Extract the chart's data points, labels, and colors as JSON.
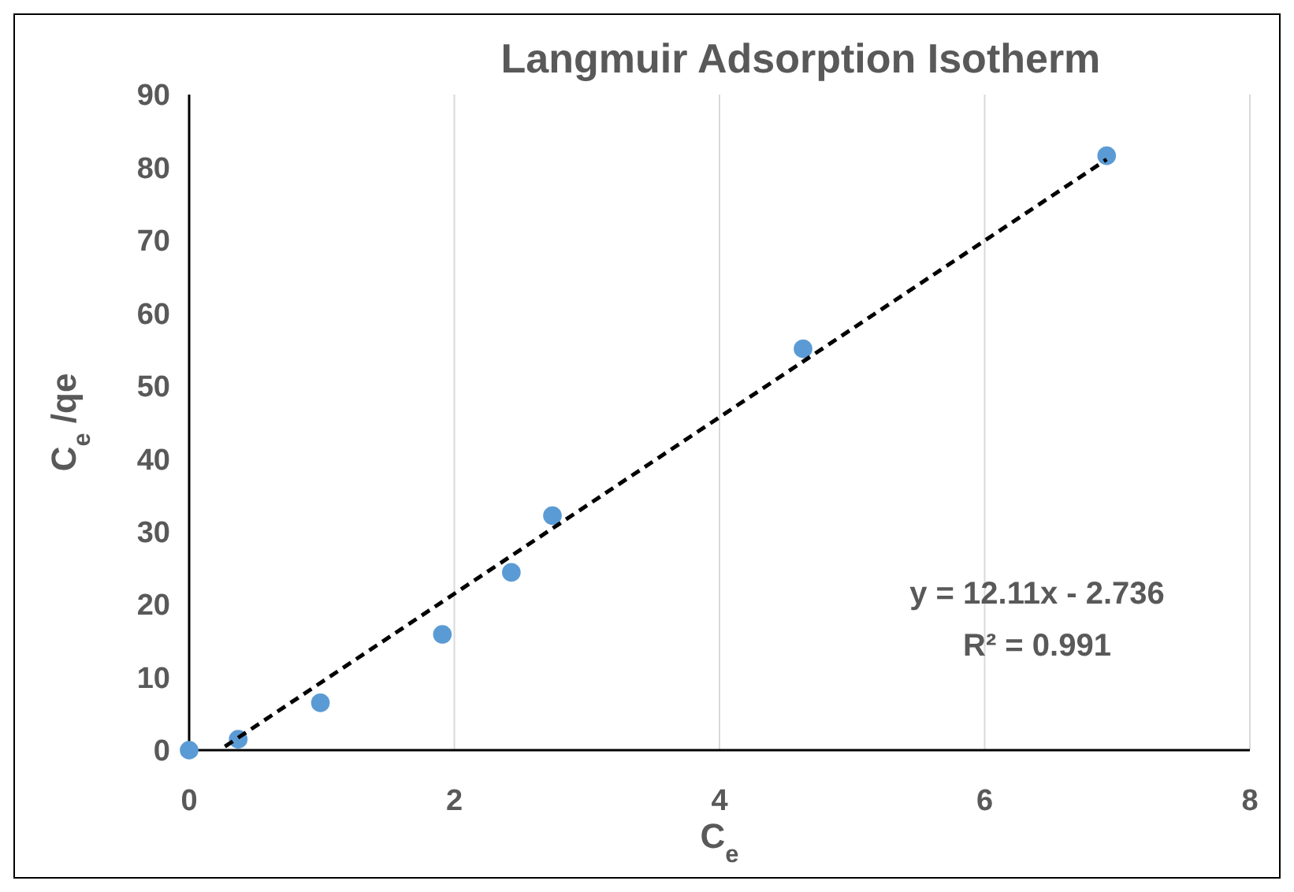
{
  "chart_data": {
    "type": "scatter",
    "title": "Langmuir Adsorption Isotherm",
    "xlabel": "C$_{e}$",
    "ylabel": "C$_{e}$ /qe",
    "xlim": [
      0,
      8
    ],
    "xticks": [
      0,
      2,
      4,
      6,
      8
    ],
    "ylim": [
      0,
      90
    ],
    "yticks": [
      0,
      10,
      20,
      30,
      40,
      50,
      60,
      70,
      80,
      90
    ],
    "grid": "x",
    "legend": false,
    "series": [
      {
        "type": "scatter",
        "color": "#5b9bd5",
        "marker": "circle",
        "x": [
          0,
          0.37,
          0.99,
          1.91,
          2.43,
          2.74,
          4.63,
          6.92
        ],
        "values": [
          0,
          1.5,
          6.5,
          15.9,
          24.4,
          32.2,
          55.1,
          81.6
        ]
      },
      {
        "type": "line",
        "color": "#000000",
        "marker": "none",
        "line_style": "dashed",
        "x": [
          0.27,
          6.92
        ],
        "values": [
          0.5,
          81.1
        ]
      }
    ],
    "annotations": [
      "y = 12.11x - 2.736",
      "R² = 0.991"
    ]
  }
}
